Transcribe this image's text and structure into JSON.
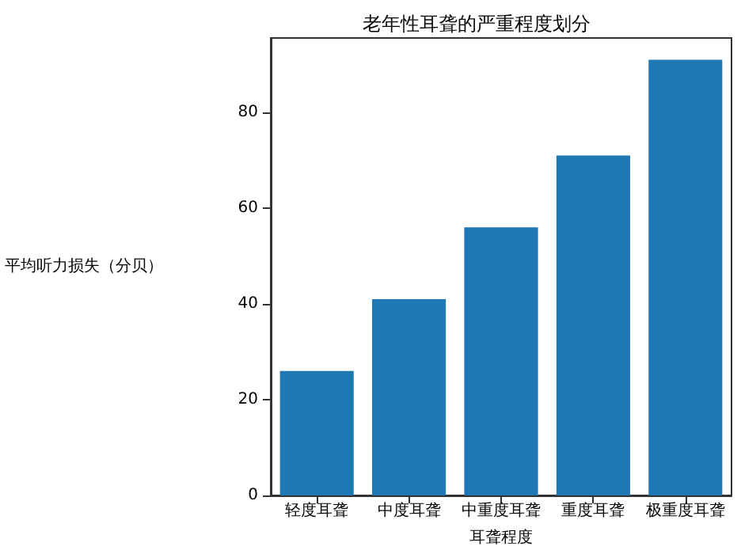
{
  "chart_data": {
    "type": "bar",
    "title": "老年性耳聋的严重程度划分",
    "xlabel": "耳聋程度",
    "ylabel": "平均听力损失（分贝）",
    "categories": [
      "轻度耳聋",
      "中度耳聋",
      "中重度耳聋",
      "重度耳聋",
      "极重度耳聋"
    ],
    "values": [
      26,
      41,
      56,
      71,
      91
    ],
    "color": "#1f77b4",
    "ylim": [
      0,
      95.55
    ],
    "yticks": [
      0,
      20,
      40,
      60,
      80
    ],
    "grid": false
  }
}
